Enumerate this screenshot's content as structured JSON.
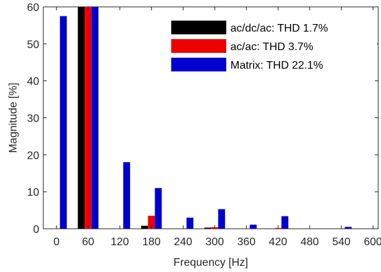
{
  "chart_data": {
    "type": "bar",
    "title": "",
    "xlabel": "Frequency [Hz]",
    "ylabel": "Magnitude [%]",
    "xlim": [
      -25,
      610
    ],
    "ylim": [
      0,
      60
    ],
    "x_ticks": [
      0,
      60,
      120,
      180,
      240,
      300,
      360,
      420,
      480,
      540,
      600
    ],
    "y_ticks": [
      0,
      10,
      20,
      30,
      40,
      50,
      60
    ],
    "grid": false,
    "legend_position": "top-right",
    "series": [
      {
        "name": "ac/dc/ac: THD 1.7%",
        "color": "#000000",
        "points": [
          [
            60,
            60
          ],
          [
            180,
            0.8
          ],
          [
            300,
            0.3
          ]
        ]
      },
      {
        "name": "ac/ac: THD 3.7%",
        "color": "#ee0000",
        "points": [
          [
            60,
            60
          ],
          [
            180,
            3.5
          ],
          [
            300,
            0.4
          ],
          [
            420,
            0.2
          ]
        ]
      },
      {
        "name": "Matrix: THD 22.1%",
        "color": "#0000cc",
        "points": [
          [
            0,
            57.5
          ],
          [
            60,
            60
          ],
          [
            120,
            18
          ],
          [
            180,
            11
          ],
          [
            240,
            3
          ],
          [
            300,
            5.3
          ],
          [
            360,
            1.1
          ],
          [
            420,
            3.4
          ],
          [
            540,
            0.5
          ]
        ]
      }
    ]
  }
}
